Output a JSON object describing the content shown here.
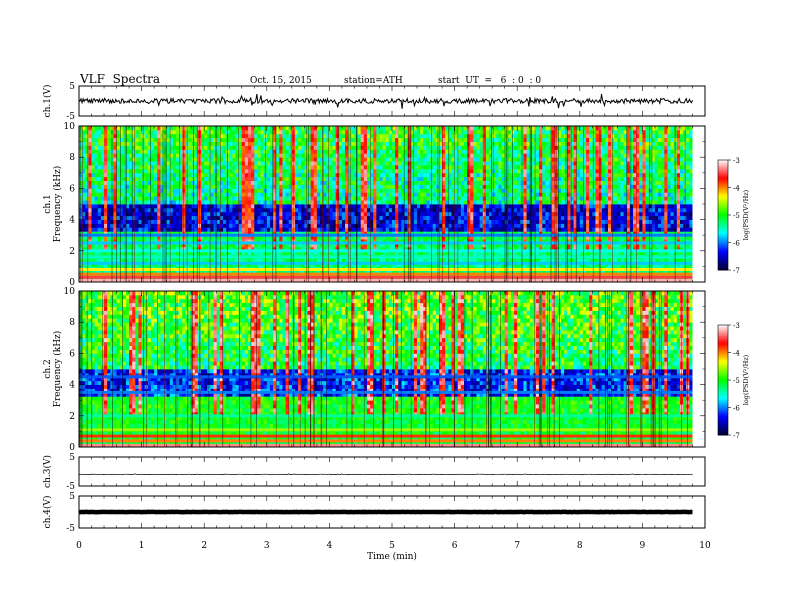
{
  "header": {
    "title": "VLF  Spectra",
    "date": "Oct. 15, 2015",
    "station": "station=ATH",
    "start": "start  UT  =   6  : 0  : 0"
  },
  "chart_data": {
    "type": "heatmap",
    "xlabel": "Time  (min)",
    "x_ticks": [
      "0",
      "1",
      "2",
      "3",
      "4",
      "5",
      "6",
      "7",
      "8",
      "9",
      "10"
    ],
    "xlim": [
      0,
      10
    ],
    "data_end_min": 9.8,
    "panels": [
      {
        "id": "ch1-waveform",
        "kind": "line",
        "ylabel": "ch.1(V)",
        "ylim": [
          -5,
          5
        ],
        "y_ticks": [
          "5",
          "-5"
        ],
        "baseline": 0,
        "noise_amplitude": 0.8,
        "spike_amplitude": 2.5
      },
      {
        "id": "ch1-spectrogram",
        "kind": "spectrogram",
        "ylabel": "Frequency  (kHz)",
        "channel": "ch.1",
        "ylim": [
          0,
          10
        ],
        "y_ticks": [
          "0",
          "2",
          "4",
          "6",
          "8",
          "10"
        ],
        "colorbar": {
          "label": "log(PSD(V²/Hz)",
          "range": [
            -7,
            -3
          ],
          "ticks": [
            "-3",
            "-4",
            "-5",
            "-6",
            "-7"
          ],
          "colors": [
            "#ffffff",
            "#ff0000",
            "#ffff00",
            "#00ff00",
            "#00ffff",
            "#0000ff",
            "#000033"
          ]
        },
        "bands": [
          {
            "f_khz": 0.1,
            "log_psd": -3.2
          },
          {
            "f_khz": 0.3,
            "log_psd": -3.5
          },
          {
            "f_khz": 0.5,
            "log_psd": -4.0
          },
          {
            "f_khz": 0.8,
            "log_psd": -4.3
          },
          {
            "f_khz": 1.2,
            "log_psd": -5.8
          },
          {
            "f_khz": 1.6,
            "log_psd": -5.5
          },
          {
            "f_khz": 2.0,
            "log_psd": -5.6
          },
          {
            "f_khz": 2.5,
            "log_psd": -5.8
          },
          {
            "f_khz": 3.0,
            "log_psd": -6.0
          }
        ],
        "background_log_psd": [
          -5.2,
          -6.4
        ],
        "bursts_log_psd": -3.6
      },
      {
        "id": "ch2-spectrogram",
        "kind": "spectrogram",
        "ylabel": "Frequency  (kHz)",
        "channel": "ch.2",
        "ylim": [
          0,
          10
        ],
        "y_ticks": [
          "0",
          "2",
          "4",
          "6",
          "8",
          "10"
        ],
        "colorbar": {
          "label": "log(PSD(V²/Hz)",
          "range": [
            -7,
            -3
          ],
          "ticks": [
            "-3",
            "-4",
            "-5",
            "-6",
            "-7"
          ],
          "colors": [
            "#ffffff",
            "#ff0000",
            "#ffff00",
            "#00ff00",
            "#00ffff",
            "#0000ff",
            "#000033"
          ]
        },
        "bands": [
          {
            "f_khz": 0.1,
            "log_psd": -3.3
          },
          {
            "f_khz": 0.4,
            "log_psd": -4.0
          },
          {
            "f_khz": 0.7,
            "log_psd": -3.8
          },
          {
            "f_khz": 1.1,
            "log_psd": -4.6
          },
          {
            "f_khz": 2.0,
            "log_psd": -5.4
          },
          {
            "f_khz": 3.5,
            "log_psd": -6.0
          },
          {
            "f_khz": 4.5,
            "log_psd": -6.1
          }
        ],
        "background_log_psd": [
          -5.0,
          -6.2
        ],
        "bursts_log_psd": -3.5
      },
      {
        "id": "ch3-waveform",
        "kind": "line",
        "ylabel": "ch.3(V)",
        "ylim": [
          -5,
          5
        ],
        "y_ticks": [
          "5",
          "-5"
        ],
        "baseline": -1,
        "noise_amplitude": 0.08,
        "spike_amplitude": 0.2
      },
      {
        "id": "ch4-waveform",
        "kind": "line",
        "ylabel": "ch.4(V)",
        "ylim": [
          -5,
          5
        ],
        "y_ticks": [
          "5",
          "-5"
        ],
        "baseline": 0,
        "noise_amplitude": 0.05,
        "spike_amplitude": 0
      }
    ]
  }
}
